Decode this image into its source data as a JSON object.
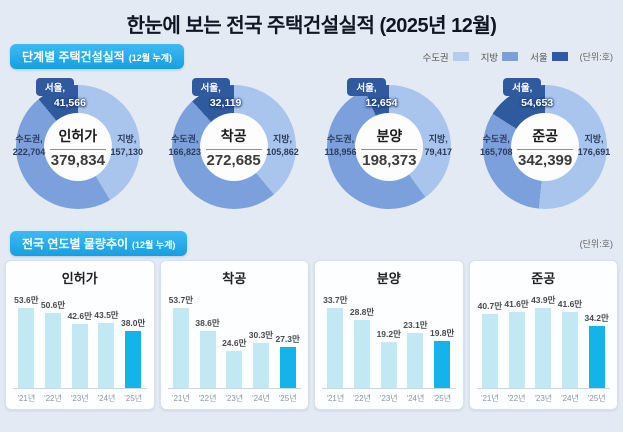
{
  "page": {
    "title": "한눈에 보는 전국 주택건설실적 (2025년 12월)"
  },
  "colors": {
    "accent": "#29a9e8",
    "background": "#e3eaf3",
    "legend_capital": "#b4cdee",
    "legend_province": "#7ba0d8",
    "legend_seoul": "#2f5b9e",
    "donut_province": "#a9c5ee",
    "donut_capital": "#7ca0dc",
    "donut_seoul": "#2f5b9e",
    "bar_default": "#c2e9f3",
    "bar_highlight": "#14b4ea"
  },
  "section1": {
    "header": "단계별 주택건설실적",
    "header_note": "(12월 누계)",
    "unit": "(단위:호)",
    "legend": [
      {
        "label": "수도권",
        "color_key": "legend_capital"
      },
      {
        "label": "지방",
        "color_key": "legend_province"
      },
      {
        "label": "서울",
        "color_key": "legend_seoul"
      }
    ]
  },
  "section2": {
    "header": "전국 연도별 물량추이",
    "header_note": "(12월 누계)",
    "unit": "(단위:호)"
  },
  "chart_data": [
    {
      "type": "donut",
      "key": "permits",
      "title": "인허가",
      "total": 379834,
      "total_label": "379,834",
      "seoul_label": "서울,",
      "seoul_value": 41566,
      "seoul_value_label": "41,566",
      "capital_label": "수도권,",
      "capital_value": 222704,
      "capital_value_label": "222,704",
      "province_label": "지방,",
      "province_value": 157130,
      "province_value_label": "157,130"
    },
    {
      "type": "donut",
      "key": "starts",
      "title": "착공",
      "total": 272685,
      "total_label": "272,685",
      "seoul_label": "서울,",
      "seoul_value": 32119,
      "seoul_value_label": "32,119",
      "capital_label": "수도권,",
      "capital_value": 166823,
      "capital_value_label": "166,823",
      "province_label": "지방,",
      "province_value": 105862,
      "province_value_label": "105,862"
    },
    {
      "type": "donut",
      "key": "sales",
      "title": "분양",
      "total": 198373,
      "total_label": "198,373",
      "seoul_label": "서울,",
      "seoul_value": 12654,
      "seoul_value_label": "12,654",
      "capital_label": "수도권,",
      "capital_value": 118956,
      "capital_value_label": "118,956",
      "province_label": "지방,",
      "province_value": 79417,
      "province_value_label": "79,417"
    },
    {
      "type": "donut",
      "key": "completions",
      "title": "준공",
      "total": 342399,
      "total_label": "342,399",
      "seoul_label": "서울,",
      "seoul_value": 54653,
      "seoul_value_label": "54,653",
      "capital_label": "수도권,",
      "capital_value": 165708,
      "capital_value_label": "165,708",
      "province_label": "지방,",
      "province_value": 176691,
      "province_value_label": "176,691"
    },
    {
      "type": "bar",
      "key": "permits",
      "title": "인허가",
      "categories": [
        "'21년",
        "'22년",
        "'23년",
        "'24년",
        "'25년"
      ],
      "values": [
        53.6,
        50.6,
        42.6,
        43.5,
        38.0
      ],
      "value_labels": [
        "53.6만",
        "50.6만",
        "42.6만",
        "43.5만",
        "38.0만"
      ]
    },
    {
      "type": "bar",
      "key": "starts",
      "title": "착공",
      "categories": [
        "'21년",
        "'22년",
        "'23년",
        "'24년",
        "'25년"
      ],
      "values": [
        53.7,
        38.6,
        24.6,
        30.3,
        27.3
      ],
      "value_labels": [
        "53.7만",
        "38.6만",
        "24.6만",
        "30.3만",
        "27.3만"
      ]
    },
    {
      "type": "bar",
      "key": "sales",
      "title": "분양",
      "categories": [
        "'21년",
        "'22년",
        "'23년",
        "'24년",
        "'25년"
      ],
      "values": [
        33.7,
        28.8,
        19.2,
        23.1,
        19.8
      ],
      "value_labels": [
        "33.7만",
        "28.8만",
        "19.2만",
        "23.1만",
        "19.8만"
      ]
    },
    {
      "type": "bar",
      "key": "completions",
      "title": "준공",
      "categories": [
        "'21년",
        "'22년",
        "'23년",
        "'24년",
        "'25년"
      ],
      "values": [
        40.7,
        41.6,
        43.9,
        41.6,
        34.2
      ],
      "value_labels": [
        "40.7만",
        "41.6만",
        "43.9만",
        "41.6만",
        "34.2만"
      ]
    }
  ]
}
